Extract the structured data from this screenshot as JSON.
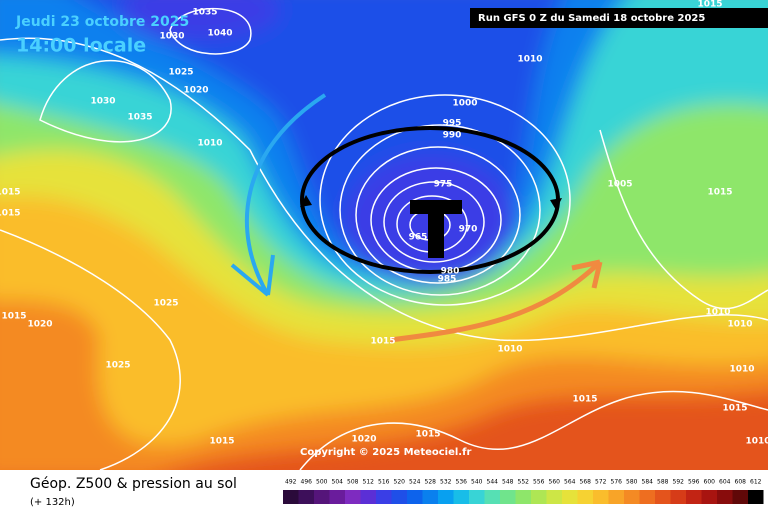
{
  "header": {
    "date": "Jeudi 23 octobre 2025",
    "time": "14:00 locale",
    "run": "Run GFS 0 Z du Samedi 18 octobre 2025"
  },
  "isobars": [
    1035,
    1040,
    1030,
    1025,
    1020,
    1030,
    1035,
    1010,
    1015,
    1010,
    1000,
    995,
    990,
    975,
    970,
    965,
    980,
    985,
    1005,
    1015,
    1015,
    1015,
    1025,
    1015,
    1020,
    1025,
    1010,
    1015,
    1010,
    1010,
    1010,
    1015,
    1015,
    1015,
    1020,
    1015,
    1010
  ],
  "copyright": "Copyright © 2025 Meteociel.fr",
  "footer": {
    "title": "Géop. Z500 & pression au sol",
    "lead": "(+ 132h)"
  },
  "scale": {
    "values": [
      492,
      496,
      500,
      504,
      508,
      512,
      516,
      520,
      524,
      528,
      532,
      536,
      540,
      544,
      548,
      552,
      556,
      560,
      564,
      568,
      572,
      576,
      580,
      584,
      588,
      592,
      596,
      600,
      604,
      608,
      612
    ],
    "colors": [
      "#2a0a3a",
      "#3d0f5a",
      "#55157a",
      "#6a1c9c",
      "#7e2bc0",
      "#5b2fd6",
      "#3a3ee6",
      "#1f4fe8",
      "#0d63ec",
      "#0a80ee",
      "#08a0f0",
      "#18bde8",
      "#38d4d6",
      "#56e0b4",
      "#70e48c",
      "#8ee66a",
      "#aee654",
      "#cde646",
      "#e6e23a",
      "#f6d232",
      "#fabd2c",
      "#f8a428",
      "#f48a24",
      "#ee6e20",
      "#e4541c",
      "#d63c18",
      "#c22414",
      "#a81410",
      "#880c0c",
      "#600808",
      "#000000"
    ]
  }
}
